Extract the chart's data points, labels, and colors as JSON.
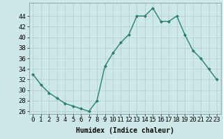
{
  "x": [
    0,
    1,
    2,
    3,
    4,
    5,
    6,
    7,
    8,
    9,
    10,
    11,
    12,
    13,
    14,
    15,
    16,
    17,
    18,
    19,
    20,
    21,
    22,
    23
  ],
  "y": [
    33,
    31,
    29.5,
    28.5,
    27.5,
    27,
    26.5,
    26,
    28,
    34.5,
    37,
    39,
    40.5,
    44,
    44,
    45.5,
    43,
    43,
    44,
    40.5,
    37.5,
    36,
    34,
    32
  ],
  "line_color": "#2d7d6e",
  "marker": "D",
  "marker_size": 2,
  "bg_color": "#cce8e8",
  "grid_color": "#b0cccc",
  "xlabel": "Humidex (Indice chaleur)",
  "ylim": [
    25.5,
    46.5
  ],
  "xlim": [
    -0.5,
    23.5
  ],
  "yticks": [
    26,
    28,
    30,
    32,
    34,
    36,
    38,
    40,
    42,
    44
  ],
  "xticks": [
    0,
    1,
    2,
    3,
    4,
    5,
    6,
    7,
    8,
    9,
    10,
    11,
    12,
    13,
    14,
    15,
    16,
    17,
    18,
    19,
    20,
    21,
    22,
    23
  ],
  "xlabel_fontsize": 7,
  "tick_fontsize": 6.5
}
